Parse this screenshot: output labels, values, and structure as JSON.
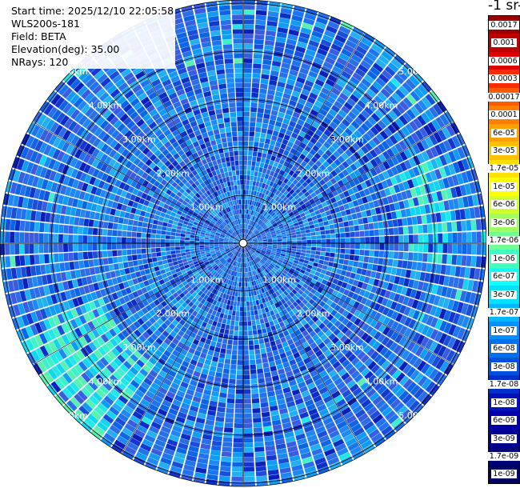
{
  "info": {
    "start_time": "Start time: 2025/12/10 22:05:58",
    "instrument": "WLS200s-181",
    "field": "Field: BETA",
    "elevation": "Elevation(deg): 35.00",
    "nrays": "NRays: 120"
  },
  "colorbar": {
    "unit_title": "-1 sr-",
    "labels": [
      "0.0017",
      "0.001",
      "0.0006",
      "0.0003",
      "0.00017",
      "0.0001",
      "6e-05",
      "3e-05",
      "1.7e-05",
      "1e-05",
      "6e-06",
      "3e-06",
      "1.7e-06",
      "1e-06",
      "6e-07",
      "3e-07",
      "1.7e-07",
      "1e-07",
      "6e-08",
      "3e-08",
      "1.7e-08",
      "1e-08",
      "6e-09",
      "3e-09",
      "1.7e-09",
      "1e-09"
    ],
    "colors": [
      "#9a0000",
      "#c00000",
      "#e00000",
      "#ff2a00",
      "#ff5a00",
      "#ff8000",
      "#ffa000",
      "#ffc000",
      "#ffe000",
      "#ffff00",
      "#d0ff30",
      "#a0ff60",
      "#70ff90",
      "#40ffc0",
      "#10ffff",
      "#00e0ff",
      "#00b8ff",
      "#0090ff",
      "#0070ee",
      "#0050dd",
      "#0030cc",
      "#0010bb",
      "#0000aa",
      "#000090",
      "#000078",
      "#000060"
    ]
  },
  "range_rings": {
    "labels": [
      "1.00km",
      "2.00km",
      "3.00km",
      "4.00km",
      "5.00km"
    ]
  }
}
